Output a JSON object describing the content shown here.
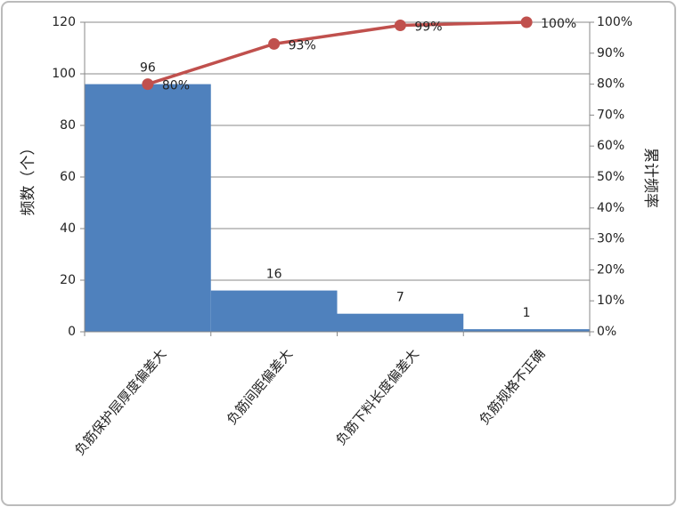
{
  "chart_data": {
    "type": "bar",
    "y_label": "频数（个）",
    "y2_label": "累计频率",
    "categories": [
      "负筋保护层厚度偏差大",
      "负筋间距偏差大",
      "负筋下料长度偏差大",
      "负筋规格不正确"
    ],
    "series": [
      {
        "type": "bar",
        "color": "#4f81bd",
        "values": [
          96,
          16,
          7,
          1
        ]
      },
      {
        "type": "line",
        "axis": "y2",
        "color": "#c0504d",
        "values": [
          80,
          93,
          99,
          100
        ],
        "value_labels": [
          "80%",
          "93%",
          "99%",
          "100%"
        ]
      }
    ],
    "ylim": [
      0,
      120
    ],
    "yticks": [
      0,
      20,
      40,
      60,
      80,
      100,
      120
    ],
    "y2lim": [
      0,
      100
    ],
    "y2ticks": [
      {
        "value": 0,
        "label": "0%"
      },
      {
        "value": 10,
        "label": "10%"
      },
      {
        "value": 20,
        "label": "20%"
      },
      {
        "value": 30,
        "label": "30%"
      },
      {
        "value": 40,
        "label": "40%"
      },
      {
        "value": 50,
        "label": "50%"
      },
      {
        "value": 60,
        "label": "60%"
      },
      {
        "value": 70,
        "label": "70%"
      },
      {
        "value": 80,
        "label": "80%"
      },
      {
        "value": 90,
        "label": "90%"
      },
      {
        "value": 100,
        "label": "100%"
      }
    ],
    "grid": true
  }
}
